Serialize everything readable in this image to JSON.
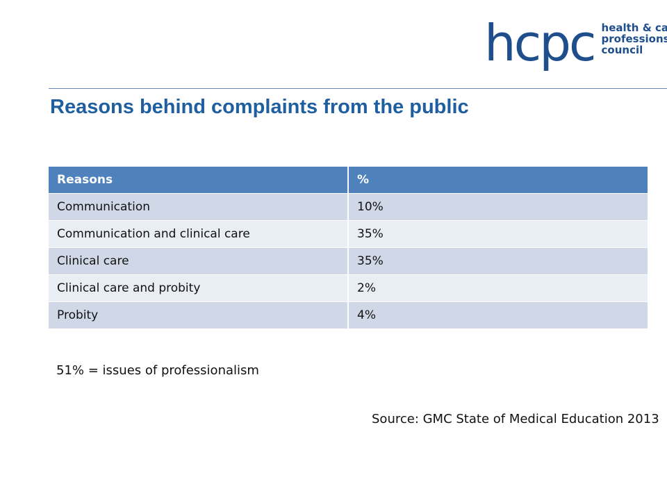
{
  "logo": {
    "word": "hcpc",
    "tagline": [
      "health & care",
      "professions",
      "council"
    ]
  },
  "title": "Reasons behind complaints from the public",
  "table": {
    "headers": [
      "Reasons",
      "%"
    ],
    "rows": [
      [
        "Communication",
        "10%"
      ],
      [
        "Communication and clinical care",
        "35%"
      ],
      [
        "Clinical care",
        "35%"
      ],
      [
        "Clinical care and probity",
        "2%"
      ],
      [
        "Probity",
        "4%"
      ]
    ]
  },
  "note": "51% = issues of professionalism",
  "source": "Source: GMC State of Medical Education 2013",
  "colors": {
    "brand": "#1f4e8c",
    "header_fill": "#4f81bd",
    "row_dark": "#d0d8e8",
    "row_light": "#e9edf4"
  }
}
